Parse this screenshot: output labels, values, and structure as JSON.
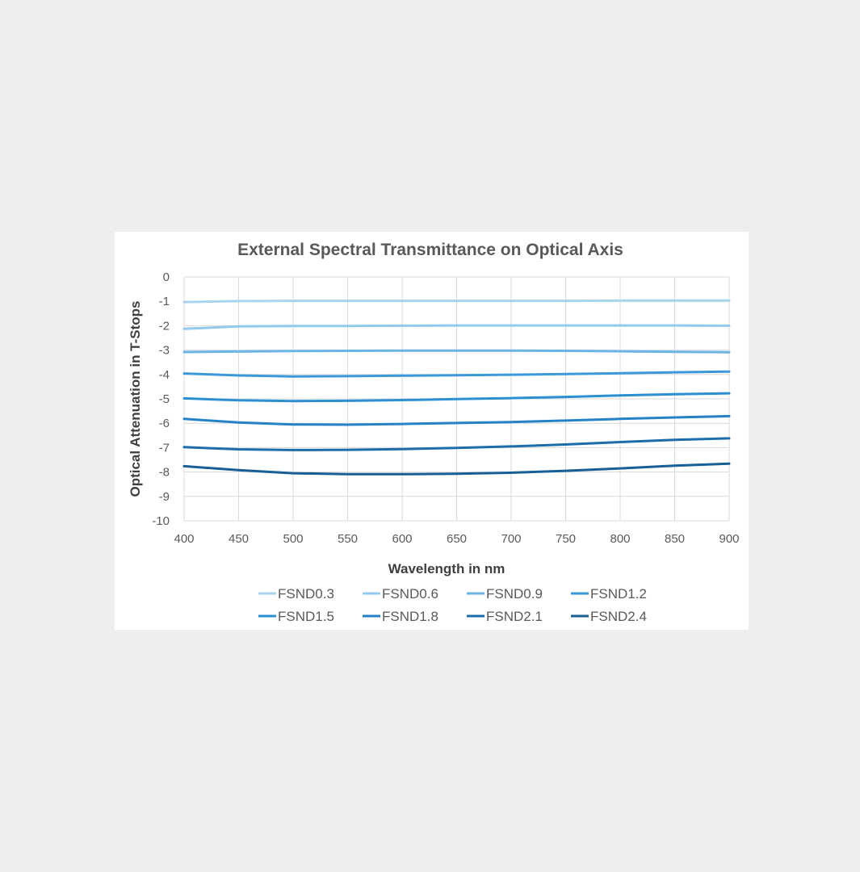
{
  "chart_data": {
    "type": "line",
    "title": "External Spectral Transmittance on Optical Axis",
    "xlabel": "Wavelength in nm",
    "ylabel": "Optical Attenuation in T-Stops",
    "xlim": [
      400,
      900
    ],
    "ylim": [
      -10,
      0
    ],
    "xticks": [
      400,
      450,
      500,
      550,
      600,
      650,
      700,
      750,
      800,
      850,
      900
    ],
    "yticks": [
      0,
      -1,
      -2,
      -3,
      -4,
      -5,
      -6,
      -7,
      -8,
      -9,
      -10
    ],
    "grid": true,
    "legend_position": "bottom",
    "x": [
      400,
      450,
      500,
      550,
      600,
      650,
      700,
      750,
      800,
      850,
      900
    ],
    "series": [
      {
        "name": "FSND0.3",
        "color": "#a9d3ee",
        "values": [
          -1.03,
          -0.99,
          -0.98,
          -0.98,
          -0.98,
          -0.98,
          -0.98,
          -0.98,
          -0.97,
          -0.97,
          -0.97
        ]
      },
      {
        "name": "FSND0.6",
        "color": "#92c9ec",
        "values": [
          -2.13,
          -2.03,
          -2.01,
          -2.01,
          -2.0,
          -1.99,
          -1.99,
          -1.99,
          -1.99,
          -1.99,
          -2.0
        ]
      },
      {
        "name": "FSND0.9",
        "color": "#6bb5e4",
        "values": [
          -3.08,
          -3.06,
          -3.04,
          -3.03,
          -3.02,
          -3.02,
          -3.02,
          -3.03,
          -3.05,
          -3.07,
          -3.09
        ]
      },
      {
        "name": "FSND1.2",
        "color": "#3a9ad9",
        "values": [
          -3.96,
          -4.04,
          -4.08,
          -4.07,
          -4.05,
          -4.03,
          -4.01,
          -3.98,
          -3.95,
          -3.91,
          -3.88
        ]
      },
      {
        "name": "FSND1.5",
        "color": "#2b8fd2",
        "values": [
          -4.98,
          -5.06,
          -5.09,
          -5.08,
          -5.05,
          -5.01,
          -4.97,
          -4.92,
          -4.86,
          -4.81,
          -4.77
        ]
      },
      {
        "name": "FSND1.8",
        "color": "#2383c6",
        "values": [
          -5.82,
          -5.97,
          -6.05,
          -6.06,
          -6.03,
          -5.99,
          -5.95,
          -5.89,
          -5.82,
          -5.76,
          -5.71
        ]
      },
      {
        "name": "FSND2.1",
        "color": "#1b6eaa",
        "values": [
          -6.98,
          -7.07,
          -7.1,
          -7.09,
          -7.06,
          -7.01,
          -6.95,
          -6.87,
          -6.77,
          -6.68,
          -6.62
        ]
      },
      {
        "name": "FSND2.4",
        "color": "#175f97",
        "values": [
          -7.76,
          -7.92,
          -8.05,
          -8.09,
          -8.09,
          -8.07,
          -8.03,
          -7.95,
          -7.85,
          -7.74,
          -7.66
        ]
      }
    ]
  }
}
